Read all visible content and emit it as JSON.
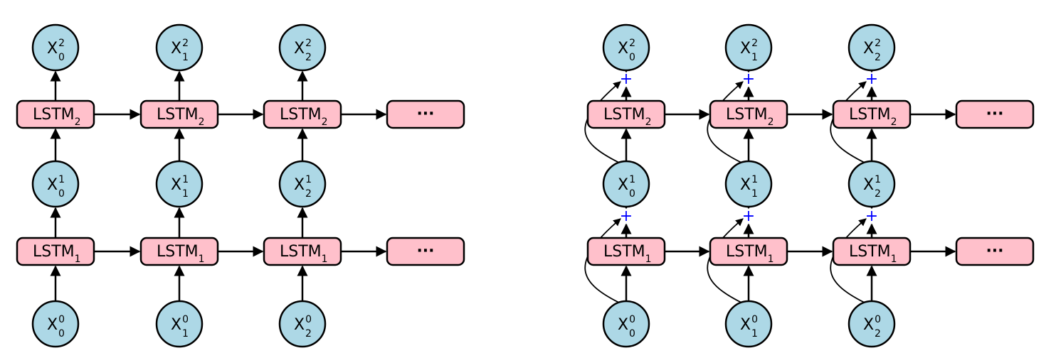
{
  "panels": [
    {
      "id": "plain-stacked-lstm",
      "residual": false,
      "layers": [
        {
          "label": "LSTM",
          "sub": "1"
        },
        {
          "label": "LSTM",
          "sub": "2"
        }
      ],
      "inputs": [
        {
          "base": "X",
          "sup": "0",
          "sub": "0"
        },
        {
          "base": "X",
          "sup": "0",
          "sub": "1"
        },
        {
          "base": "X",
          "sup": "0",
          "sub": "2"
        }
      ],
      "hidden1": [
        {
          "base": "X",
          "sup": "1",
          "sub": "0"
        },
        {
          "base": "X",
          "sup": "1",
          "sub": "1"
        },
        {
          "base": "X",
          "sup": "1",
          "sub": "2"
        }
      ],
      "outputs": [
        {
          "base": "X",
          "sup": "2",
          "sub": "0"
        },
        {
          "base": "X",
          "sup": "2",
          "sub": "1"
        },
        {
          "base": "X",
          "sup": "2",
          "sub": "2"
        }
      ],
      "continuation": "···"
    },
    {
      "id": "residual-stacked-lstm",
      "residual": true,
      "plus_symbol": "+",
      "layers": [
        {
          "label": "LSTM",
          "sub": "1"
        },
        {
          "label": "LSTM",
          "sub": "2"
        }
      ],
      "inputs": [
        {
          "base": "X",
          "sup": "0",
          "sub": "0"
        },
        {
          "base": "X",
          "sup": "0",
          "sub": "1"
        },
        {
          "base": "X",
          "sup": "0",
          "sub": "2"
        }
      ],
      "hidden1": [
        {
          "base": "X",
          "sup": "1",
          "sub": "0"
        },
        {
          "base": "X",
          "sup": "1",
          "sub": "1"
        },
        {
          "base": "X",
          "sup": "1",
          "sub": "2"
        }
      ],
      "outputs": [
        {
          "base": "X",
          "sup": "2",
          "sub": "0"
        },
        {
          "base": "X",
          "sup": "2",
          "sub": "1"
        },
        {
          "base": "X",
          "sup": "2",
          "sub": "2"
        }
      ],
      "continuation": "···"
    }
  ],
  "colors": {
    "node_fill": "#add8e6",
    "lstm_fill": "#ffc0cb",
    "plus_color": "#0000ff",
    "stroke": "#000000"
  }
}
